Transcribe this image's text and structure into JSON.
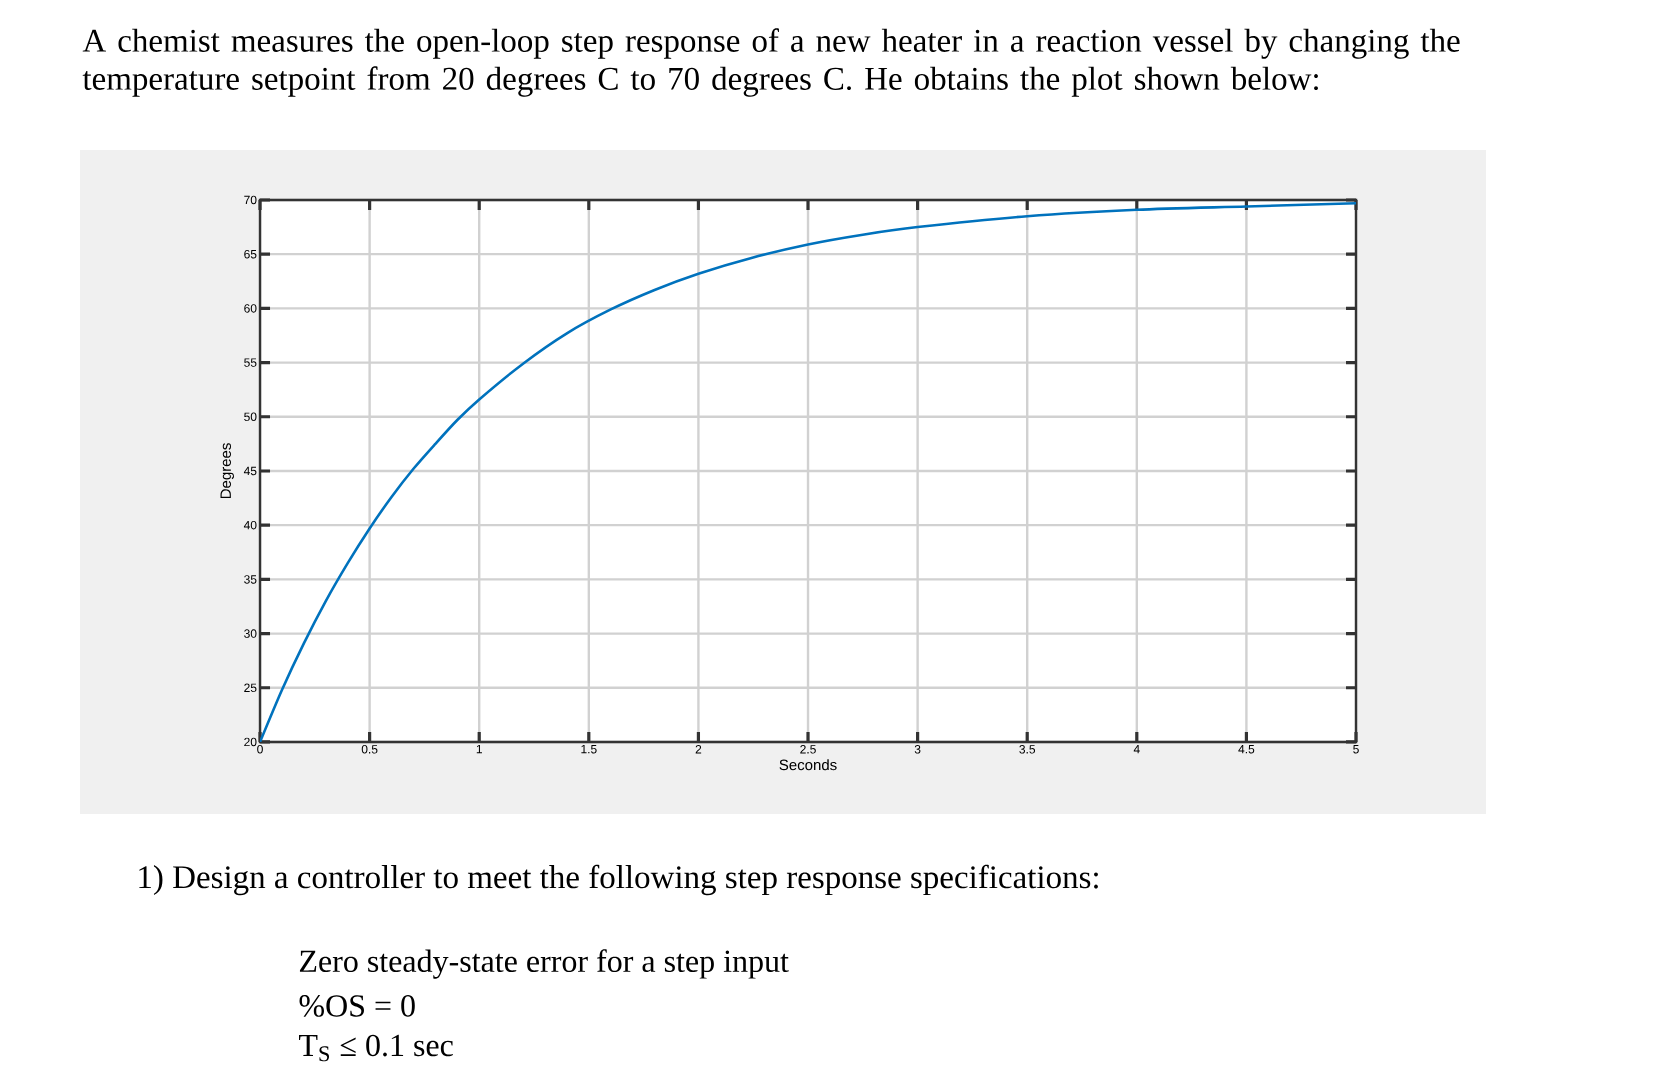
{
  "chart_data": {
    "type": "line",
    "title": "A chemist measures the open-loop step response of a new heater in a reaction vessel by changing the temperature setpoint from 20 degrees C to 70 degrees C.  He obtains the plot shown below:",
    "xlabel": "Seconds",
    "ylabel": "Degrees",
    "x": [
      0,
      0.1,
      0.2,
      0.3,
      0.4,
      0.5,
      0.6,
      0.7,
      0.8,
      0.9,
      1,
      1.2,
      1.4,
      1.6,
      1.8,
      2,
      2.25,
      2.5,
      2.75,
      3,
      3.5,
      4,
      4.5,
      5
    ],
    "series": [
      {
        "color": "#0072bd",
        "values": [
          20,
          24.8,
          29.1,
          33,
          36.5,
          39.7,
          42.6,
          45.2,
          47.5,
          49.7,
          51.6,
          54.9,
          57.7,
          59.9,
          61.7,
          63.2,
          64.7,
          65.9,
          66.8,
          67.5,
          68.5,
          69.1,
          69.4,
          69.7
        ]
      }
    ],
    "xlim": [
      0,
      5
    ],
    "ylim": [
      20,
      70
    ],
    "xticks": [
      0,
      0.5,
      1,
      1.5,
      2,
      2.5,
      3,
      3.5,
      4,
      4.5,
      5
    ],
    "yticks": [
      20,
      25,
      30,
      35,
      40,
      45,
      50,
      55,
      60,
      65,
      70
    ],
    "grid": true,
    "marker": "none",
    "line_style": "solid",
    "annotations": [
      "1)  Design a controller to meet the following step response specifications:",
      "Zero steady-state error for a step input",
      "%OS = 0",
      "T$_{S}$ ≤ 0.1 sec"
    ]
  }
}
